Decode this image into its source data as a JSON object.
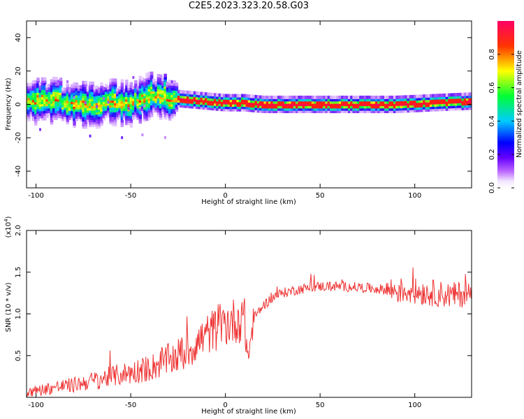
{
  "title": "C2E5.2023.323.20.58.G03",
  "chart_data": [
    {
      "type": "heatmap",
      "xlabel": "Height of straight line (km)",
      "ylabel": "Frequency (Hz)",
      "xlim": [
        -105,
        130
      ],
      "ylim": [
        -50,
        50
      ],
      "xticks": [
        -100,
        -50,
        0,
        50,
        100
      ],
      "yticks": [
        -40,
        -20,
        0,
        20,
        40
      ],
      "colorbar": {
        "label": "Normalized spectral amplitude",
        "range": [
          0,
          1
        ],
        "ticks": [
          "0.0",
          "0.2",
          "0.4",
          "0.6",
          "0.8"
        ],
        "colormap": [
          "#ffffff",
          "#e8d0ff",
          "#9933ff",
          "#3300ff",
          "#00ccff",
          "#00ff33",
          "#ffff00",
          "#ff2200",
          "#ff0066"
        ]
      },
      "ridge": {
        "x": [
          -105,
          -90,
          -80,
          -70,
          -60,
          -50,
          -40,
          -35,
          -30,
          -20,
          -10,
          0,
          10,
          20,
          30,
          50,
          70,
          90,
          110,
          130
        ],
        "y": [
          2,
          3,
          1,
          0,
          2,
          1,
          6,
          6,
          4,
          3,
          2,
          1,
          1,
          0,
          0,
          0,
          0,
          0,
          1,
          2
        ]
      }
    },
    {
      "type": "line",
      "xlabel": "Height of straight line (km)",
      "ylabel": "SNR (10 * v/v)",
      "ymultiplier": "(x10",
      "ymultiplier_exp": "4",
      "ymultiplier_close": ")",
      "xlim": [
        -105,
        130
      ],
      "ylim": [
        0,
        2.0
      ],
      "xticks": [
        -100,
        -50,
        0,
        50,
        100
      ],
      "yticks": [
        "0.5",
        "1.0",
        "1.5",
        "2.0"
      ],
      "line_color": "#ee3333",
      "series": [
        {
          "x": [
            -105,
            -100,
            -90,
            -80,
            -70,
            -60,
            -50,
            -40,
            -30,
            -25,
            -20,
            -15,
            -10,
            -5,
            0,
            5,
            10,
            12,
            15,
            20,
            25,
            30,
            40,
            50,
            60,
            70,
            80,
            90,
            100,
            110,
            120,
            130
          ],
          "values": [
            0.05,
            0.08,
            0.12,
            0.15,
            0.2,
            0.25,
            0.3,
            0.35,
            0.45,
            0.5,
            0.55,
            0.65,
            0.75,
            0.82,
            0.88,
            0.92,
            0.95,
            0.45,
            0.95,
            1.1,
            1.2,
            1.25,
            1.3,
            1.33,
            1.33,
            1.32,
            1.3,
            1.28,
            1.27,
            1.25,
            1.22,
            1.25
          ]
        }
      ]
    }
  ]
}
